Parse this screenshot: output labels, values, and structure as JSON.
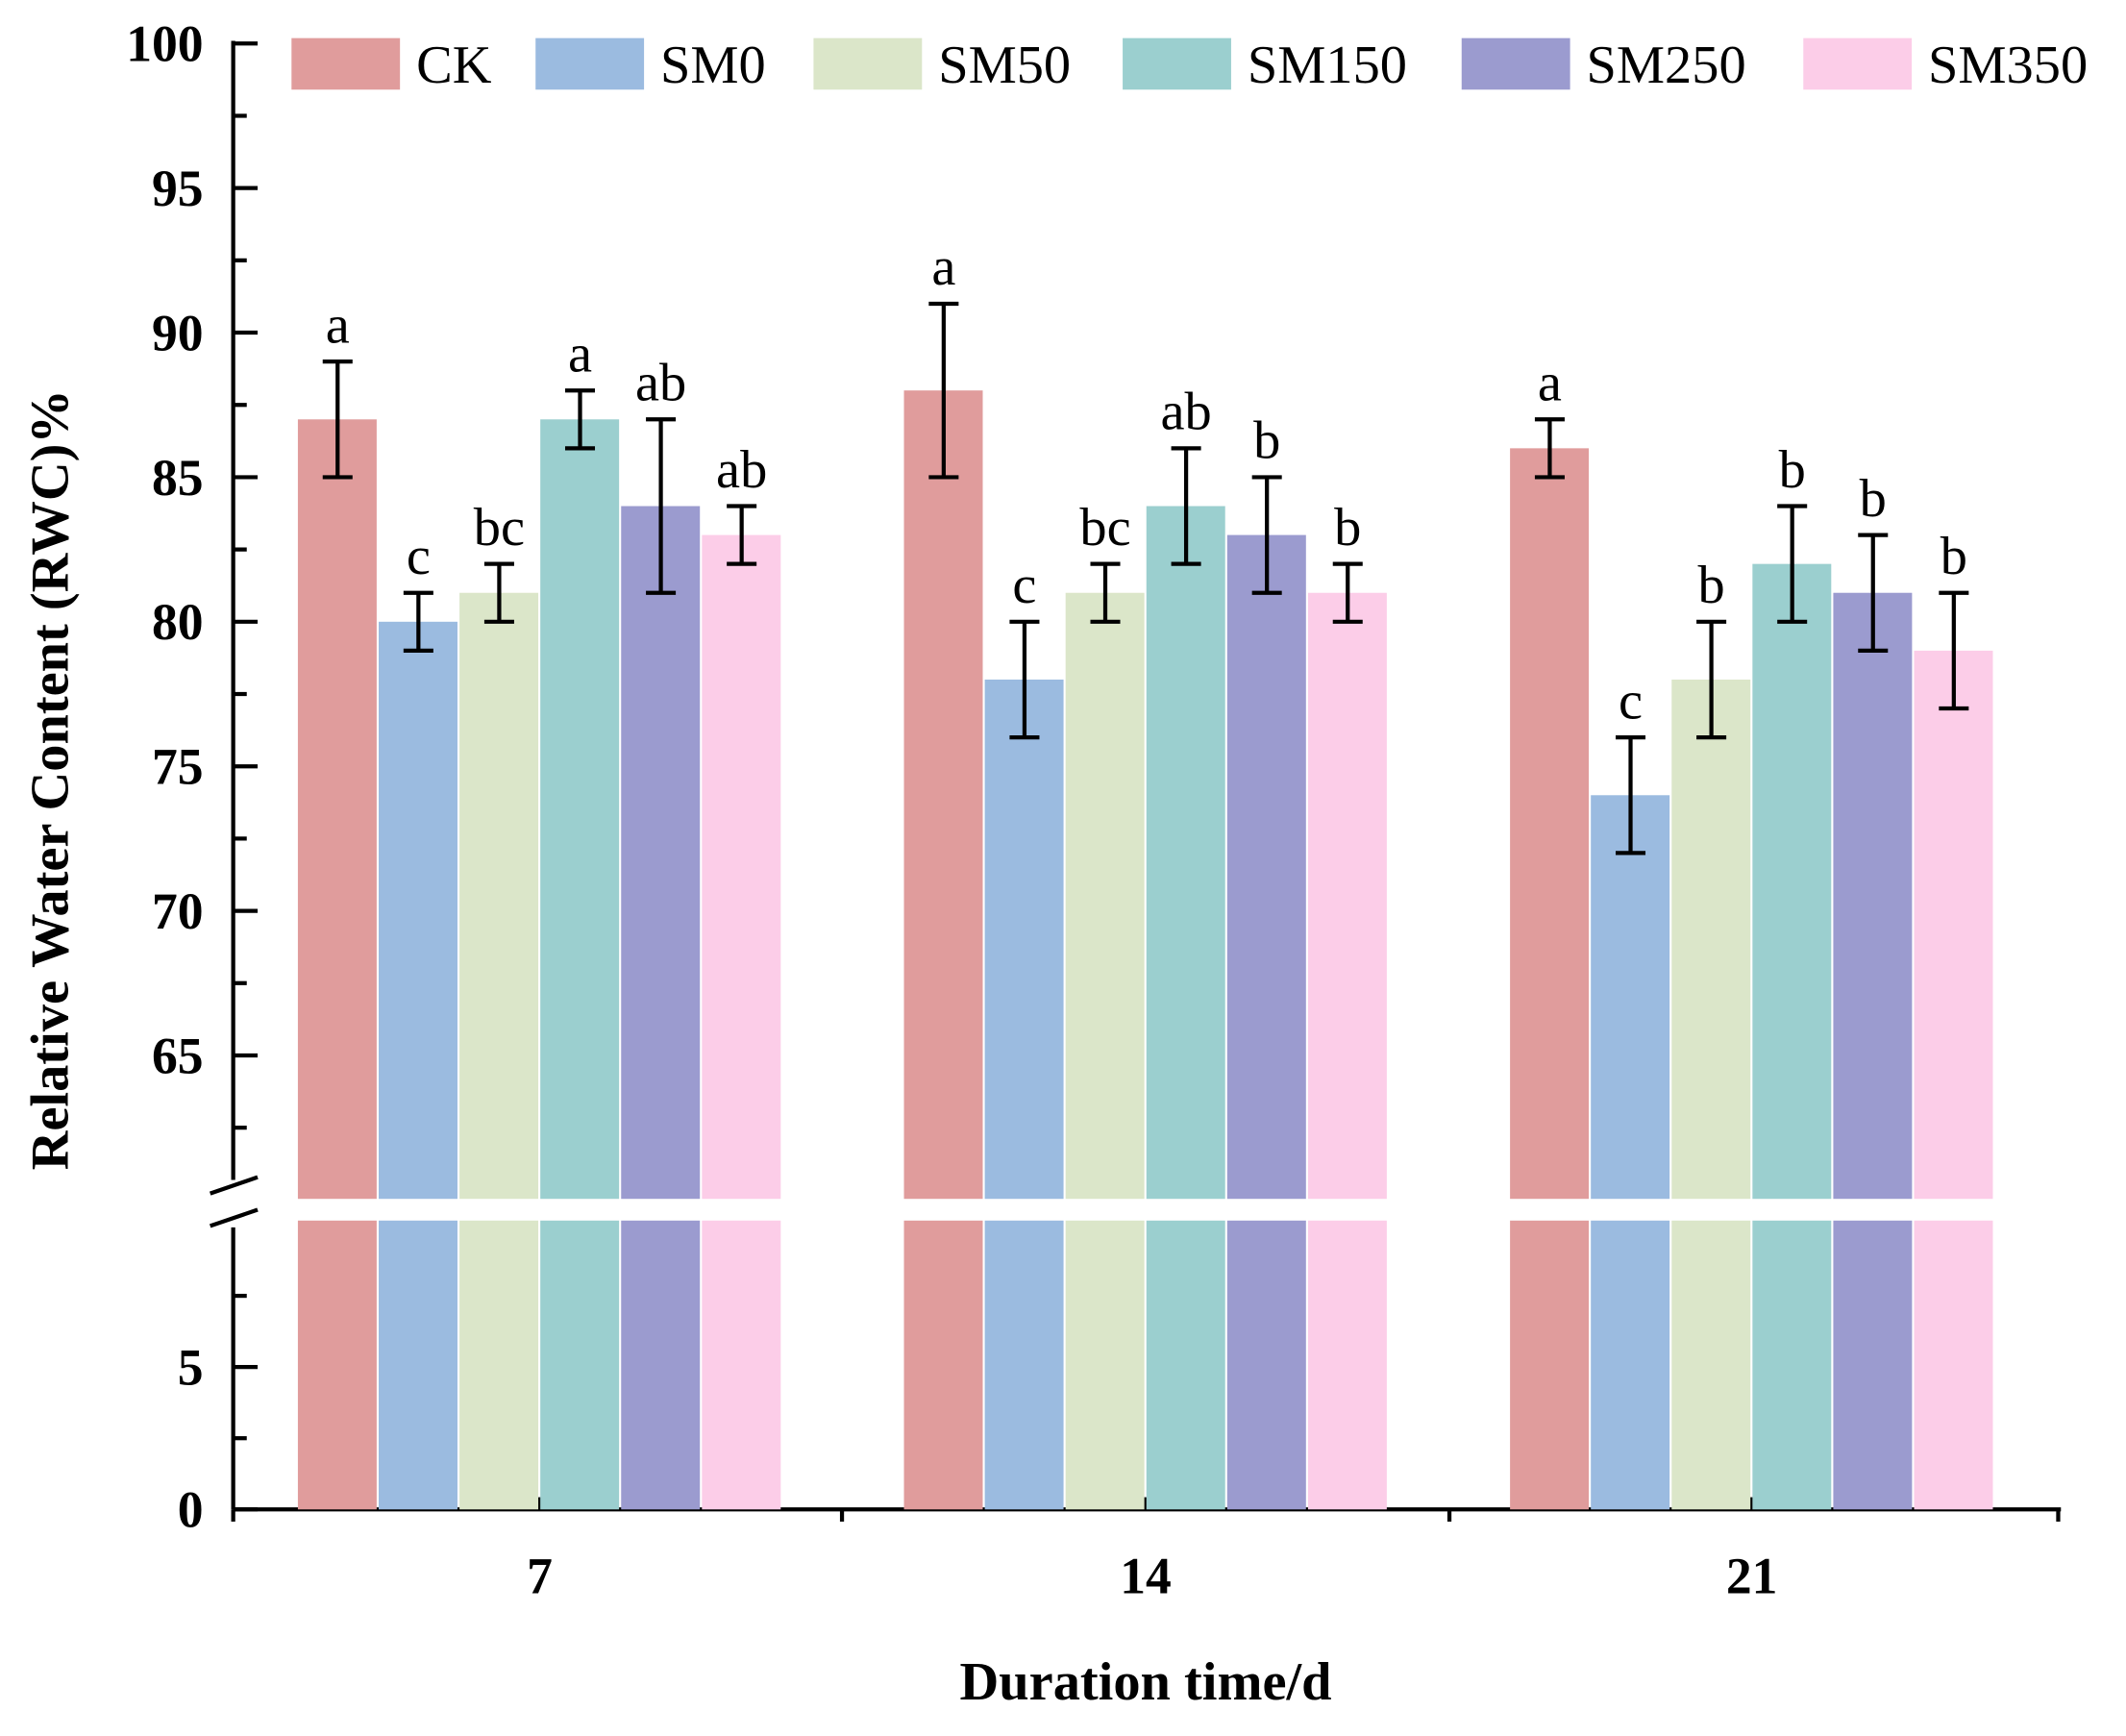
{
  "chart_data": {
    "type": "bar",
    "title": "",
    "xlabel": "Duration time/d",
    "ylabel": "Relative Water Content (RWC)%",
    "categories": [
      "7",
      "14",
      "21"
    ],
    "y_axis_break": [
      10,
      60
    ],
    "ylim": [
      0,
      100
    ],
    "upper_ticks": [
      "65",
      "70",
      "75",
      "80",
      "85",
      "90",
      "95",
      "100"
    ],
    "lower_ticks": [
      "0",
      "5"
    ],
    "legend_position": "top",
    "series": [
      {
        "name": "CK",
        "color": "#e09c9c",
        "values": [
          87,
          88,
          86
        ],
        "errors": [
          2,
          3,
          1
        ],
        "letters": [
          "a",
          "a",
          "a"
        ]
      },
      {
        "name": "SM0",
        "color": "#9bbbe0",
        "values": [
          80,
          78,
          74
        ],
        "errors": [
          1,
          2,
          2
        ],
        "letters": [
          "c",
          "c",
          "c"
        ]
      },
      {
        "name": "SM50",
        "color": "#dbe6c9",
        "values": [
          81,
          81,
          78
        ],
        "errors": [
          1,
          1,
          2
        ],
        "letters": [
          "bc",
          "bc",
          "b"
        ]
      },
      {
        "name": "SM150",
        "color": "#9bcfcf",
        "values": [
          87,
          84,
          82
        ],
        "errors": [
          1,
          2,
          2
        ],
        "letters": [
          "a",
          "ab",
          "b"
        ]
      },
      {
        "name": "SM250",
        "color": "#9b9bcf",
        "values": [
          84,
          83,
          81
        ],
        "errors": [
          3,
          2,
          2
        ],
        "letters": [
          "ab",
          "b",
          "b"
        ]
      },
      {
        "name": "SM350",
        "color": "#fccde8",
        "values": [
          83,
          81,
          79
        ],
        "errors": [
          1,
          1,
          2
        ],
        "letters": [
          "ab",
          "b",
          "b"
        ]
      }
    ]
  }
}
